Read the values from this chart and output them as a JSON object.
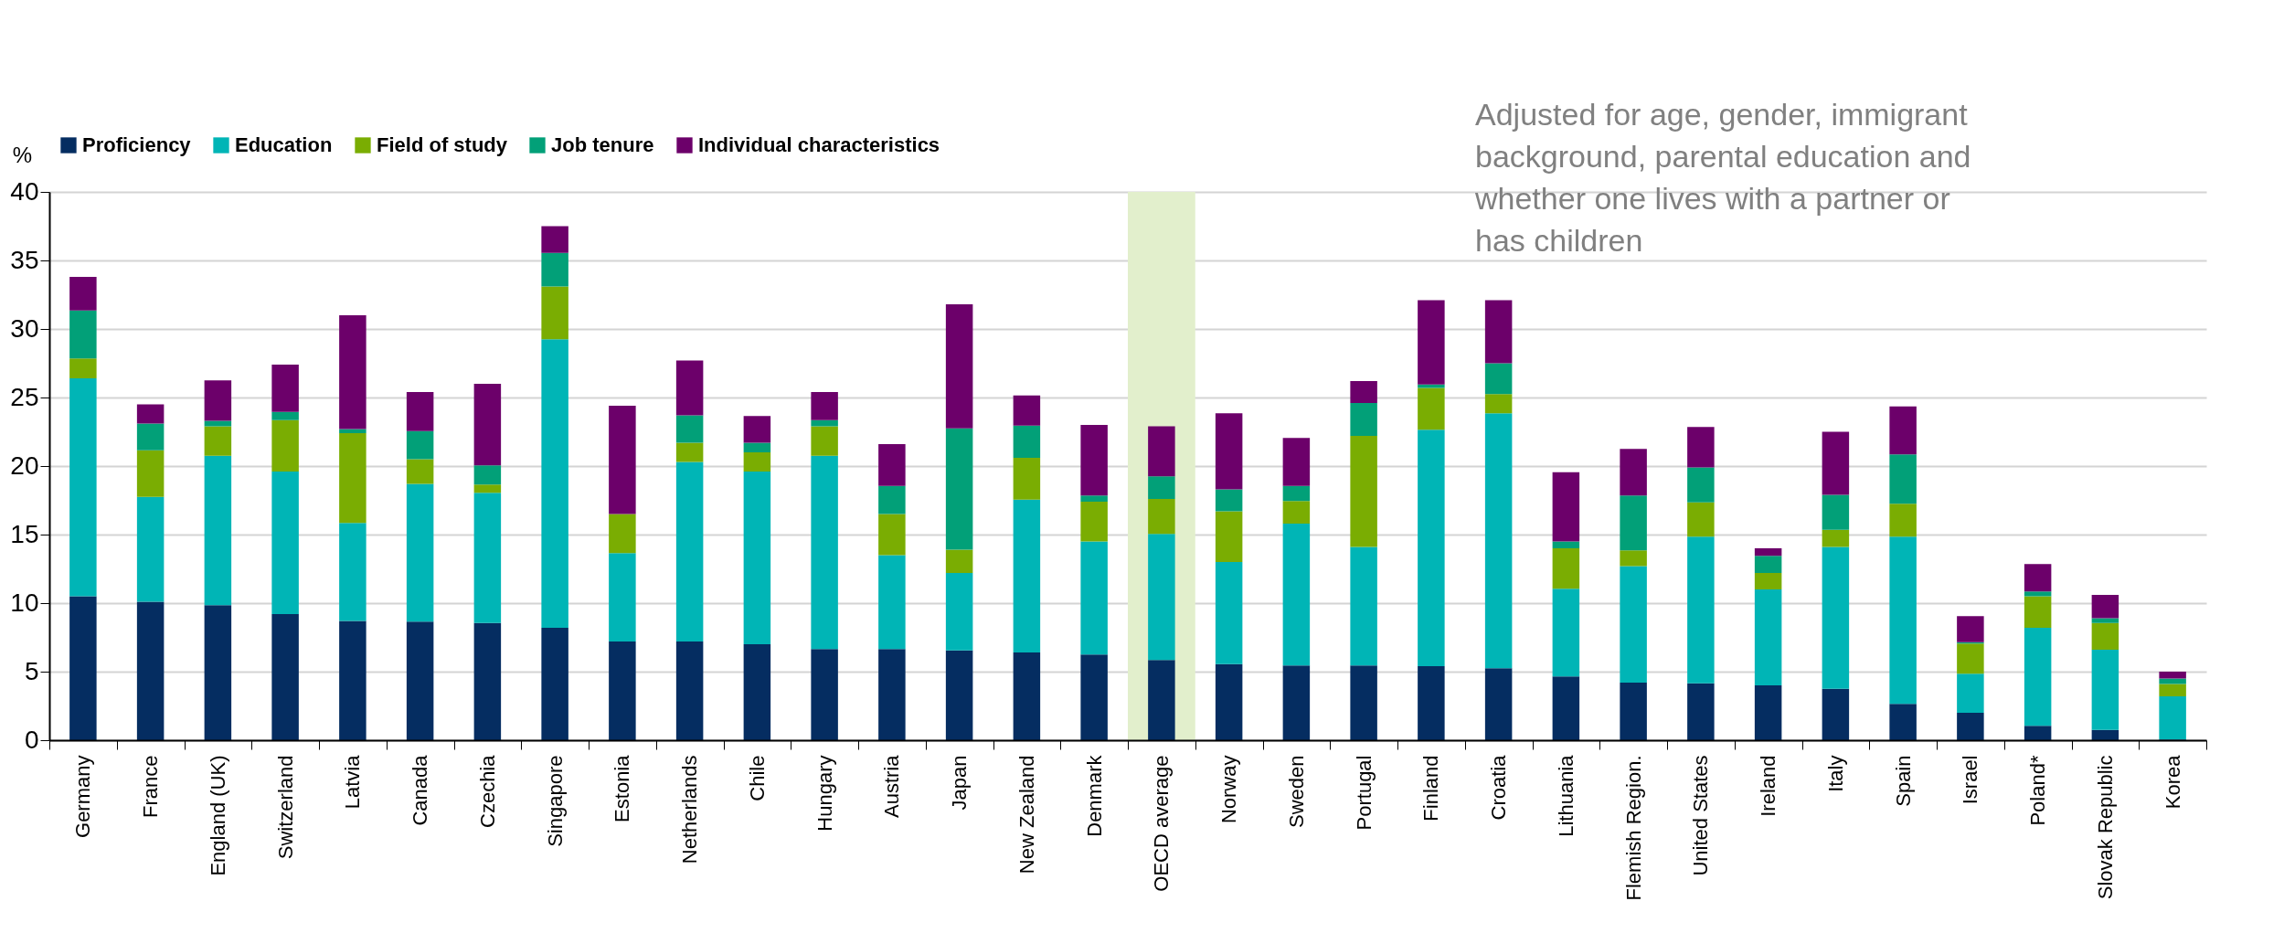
{
  "chart_data": {
    "type": "bar",
    "stacked": true,
    "ylabel": "%",
    "categories": [
      "Germany",
      "France",
      "England (UK)",
      "Switzerland",
      "Latvia",
      "Canada",
      "Czechia",
      "Singapore",
      "Estonia",
      "Netherlands",
      "Chile",
      "Hungary",
      "Austria",
      "Japan",
      "New Zealand",
      "Denmark",
      "OECD average",
      "Norway",
      "Sweden",
      "Portugal",
      "Finland",
      "Croatia",
      "Lithuania",
      "Flemish Region.",
      "United States",
      "Ireland",
      "Italy",
      "Spain",
      "Israel",
      "Poland*",
      "Slovak Republic",
      "Korea"
    ],
    "series": [
      {
        "name": "Proficiency",
        "color": "#052d61",
        "values": [
          10.5,
          10.1,
          9.85,
          9.2,
          8.7,
          8.65,
          8.55,
          8.2,
          7.2,
          7.2,
          7.0,
          6.65,
          6.65,
          6.55,
          6.4,
          6.25,
          5.85,
          5.55,
          5.45,
          5.45,
          5.4,
          5.25,
          4.65,
          4.2,
          4.15,
          4.0,
          3.75,
          2.65,
          2.0,
          1.05,
          0.75,
          0.05
        ]
      },
      {
        "name": "Education",
        "color": "#00b5b6",
        "values": [
          15.9,
          7.65,
          10.9,
          10.4,
          7.15,
          10.05,
          9.5,
          21.05,
          6.45,
          13.1,
          12.6,
          14.1,
          6.85,
          5.65,
          11.15,
          8.25,
          9.2,
          7.45,
          10.35,
          8.65,
          17.25,
          18.6,
          6.4,
          8.5,
          10.7,
          7.0,
          10.35,
          12.2,
          2.85,
          7.15,
          5.85,
          3.15
        ]
      },
      {
        "name": "Field of study",
        "color": "#7aad02",
        "values": [
          1.45,
          3.4,
          2.15,
          3.75,
          6.55,
          1.8,
          0.6,
          3.85,
          2.85,
          1.4,
          1.4,
          2.15,
          3.0,
          1.7,
          3.05,
          2.9,
          2.55,
          3.7,
          1.65,
          8.1,
          3.05,
          1.4,
          2.95,
          1.15,
          2.5,
          1.2,
          1.25,
          2.4,
          2.2,
          2.3,
          1.95,
          0.9
        ]
      },
      {
        "name": "Job tenure",
        "color": "#02a078",
        "values": [
          3.5,
          1.95,
          0.4,
          0.6,
          0.3,
          2.05,
          1.4,
          2.45,
          0,
          2.0,
          0.7,
          0.45,
          2.05,
          8.85,
          2.35,
          0.45,
          1.65,
          1.6,
          1.1,
          2.4,
          0.25,
          2.25,
          0.5,
          4.0,
          2.55,
          1.25,
          2.55,
          3.6,
          0.1,
          0.35,
          0.35,
          0.4
        ]
      },
      {
        "name": "Individual characteristics",
        "color": "#6c006a",
        "values": [
          2.45,
          1.4,
          2.95,
          3.45,
          8.3,
          2.85,
          5.95,
          1.95,
          7.9,
          4.0,
          1.95,
          2.05,
          3.05,
          9.05,
          2.2,
          5.15,
          3.65,
          5.55,
          3.5,
          1.6,
          6.15,
          4.6,
          5.05,
          3.4,
          2.95,
          0.55,
          4.6,
          3.5,
          1.9,
          2.0,
          1.7,
          0.5
        ]
      }
    ],
    "ylim": [
      0,
      40
    ],
    "yticks": [
      0,
      5,
      10,
      15,
      20,
      25,
      30,
      35,
      40
    ],
    "grid": "y",
    "legend": "top left",
    "bands": [
      {
        "axis": "x",
        "from": "OECD average",
        "to": "OECD average",
        "color": "#e2efcc"
      }
    ],
    "annotations": [
      "Adjusted for age, gender, immigrant background, parental education and whether one lives with a partner or has children"
    ]
  }
}
